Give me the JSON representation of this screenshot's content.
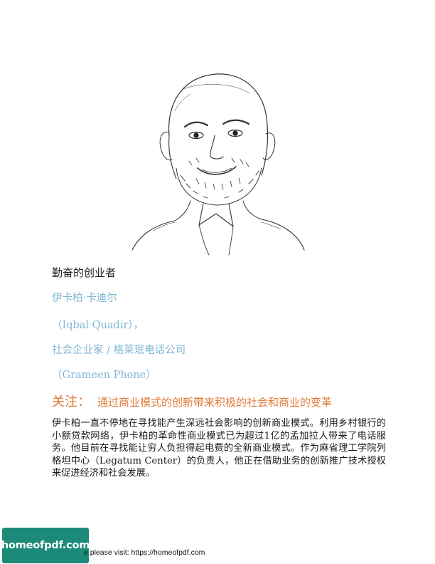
{
  "profile": {
    "heading": "勤奋的创业者",
    "name_cn": "伊卡柏·卡迪尔",
    "name_en": "（Iqbal Quadir），",
    "role_cn": "社会企业家 / 格莱珉电话公司",
    "role_en": "（Grameen Phone）",
    "focus_label": "关注：",
    "focus_text": "通过商业模式的创新带来积极的社会和商业的变革",
    "description": "伊卡柏一直不停地在寻找能产生深远社会影响的创新商业模式。利用乡村银行的小额贷款网络，伊卡柏的革命性商业模式已为超过1亿的孟加拉人带来了电话服务。他目前在寻找能让穷人负担得起电费的全新商业模式。作为麻省理工学院列格坦中心（Legatum Center）的负责人，他正在借助业务的创新推广技术授权来促进经济和社会发展。"
  },
  "portrait": {
    "description_icon": "portrait-sketch"
  },
  "footer": {
    "badge_text": "homeofpdf.com",
    "visit_text": "e please visit: https://homeofpdf.com"
  },
  "colors": {
    "blue_text": "#7fb6d6",
    "orange_text": "#e07a3a",
    "badge_bg": "#1c8a78"
  }
}
